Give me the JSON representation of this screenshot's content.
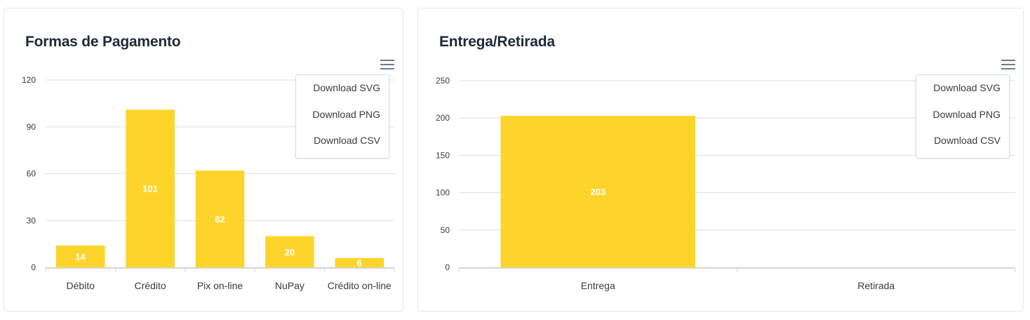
{
  "charts": [
    {
      "title": "Formas de Pagamento",
      "menu": {
        "items": [
          "Download SVG",
          "Download PNG",
          "Download CSV"
        ]
      }
    },
    {
      "title": "Entrega/Retirada",
      "menu": {
        "items": [
          "Download SVG",
          "Download PNG",
          "Download CSV"
        ]
      }
    }
  ],
  "chart_data": [
    {
      "type": "bar",
      "title": "Formas de Pagamento",
      "categories": [
        "Débito",
        "Crédito",
        "Pix on-line",
        "NuPay",
        "Crédito on-line"
      ],
      "values": [
        14,
        101,
        62,
        20,
        6
      ],
      "ylim": [
        0,
        120
      ],
      "yticks": [
        0,
        30,
        60,
        90,
        120
      ],
      "grid": true,
      "data_labels": true,
      "bar_color": "#fdd52a"
    },
    {
      "type": "bar",
      "title": "Entrega/Retirada",
      "categories": [
        "Entrega",
        "Retirada"
      ],
      "values": [
        203,
        0
      ],
      "ylim": [
        0,
        250
      ],
      "yticks": [
        0,
        50,
        100,
        150,
        200,
        250
      ],
      "grid": true,
      "data_labels": true,
      "bar_color": "#fdd52a"
    }
  ]
}
